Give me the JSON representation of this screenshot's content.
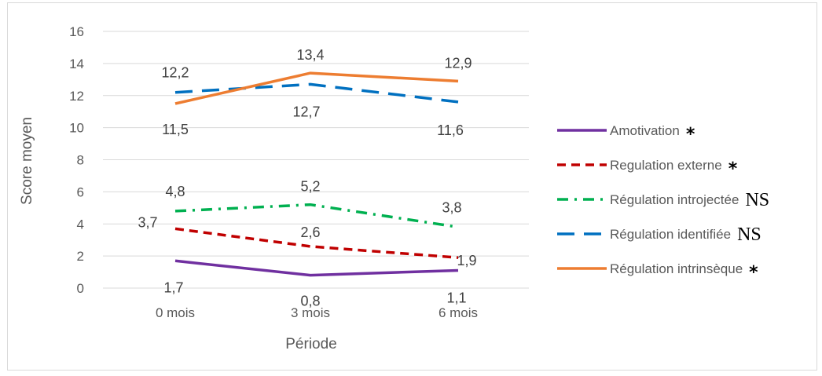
{
  "chart_data": {
    "type": "line",
    "title": "",
    "xlabel": "Période",
    "ylabel": "Score moyen",
    "categories": [
      "0 mois",
      "3 mois",
      "6 mois"
    ],
    "ylim": [
      0,
      16
    ],
    "yticks": [
      0,
      2,
      4,
      6,
      8,
      10,
      12,
      14,
      16
    ],
    "grid": true,
    "legend_position": "right",
    "series": [
      {
        "name": "Amotivation",
        "marker": "*",
        "values": [
          1.7,
          0.8,
          1.1
        ],
        "labels": [
          "1,7",
          "0,8",
          "1,1"
        ],
        "color": "#7030A0",
        "style": "solid"
      },
      {
        "name": "Regulation externe",
        "marker": "*",
        "values": [
          3.7,
          2.6,
          1.9
        ],
        "labels": [
          "3,7",
          "2,6",
          "1,9"
        ],
        "color": "#C00000",
        "style": "dash"
      },
      {
        "name": "Régulation introjectée",
        "marker": "NS",
        "values": [
          4.8,
          5.2,
          3.8
        ],
        "labels": [
          "4,8",
          "5,2",
          "3,8"
        ],
        "color": "#00B050",
        "style": "dashdot"
      },
      {
        "name": "Régulation identifiée",
        "marker": "NS",
        "values": [
          12.2,
          12.7,
          11.6
        ],
        "labels": [
          "12,2",
          "12,7",
          "11,6"
        ],
        "color": "#0070C0",
        "style": "longdash"
      },
      {
        "name": "Régulation intrinsèque",
        "marker": "*",
        "values": [
          11.5,
          13.4,
          12.9
        ],
        "labels": [
          "11,5",
          "13,4",
          "12,9"
        ],
        "color": "#ED7D31",
        "style": "solid"
      }
    ]
  }
}
